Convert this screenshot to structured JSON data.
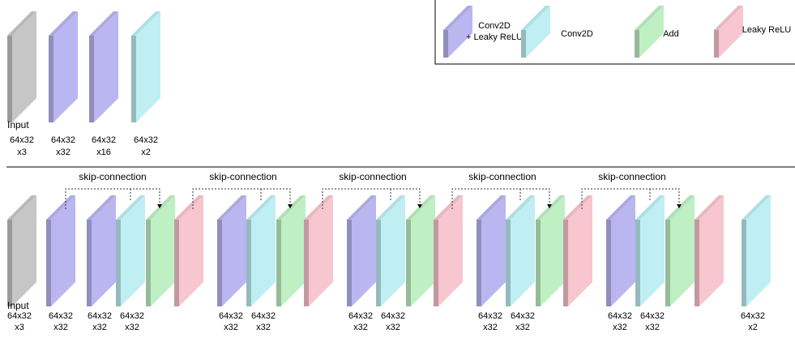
{
  "colors": {
    "conv_leaky": "#b9b6f0",
    "conv": "#bfeff3",
    "add": "#bff0c4",
    "leaky": "#f8c6cf",
    "input": "#c6c6c6"
  },
  "legend": [
    {
      "type": "conv_leaky",
      "line1": "Conv2D",
      "line2": "+ Leaky ReLU"
    },
    {
      "type": "conv",
      "line1": "Conv2D",
      "line2": ""
    },
    {
      "type": "add",
      "line1": "Add",
      "line2": ""
    },
    {
      "type": "leaky",
      "line1": "Leaky ReLU",
      "line2": ""
    }
  ],
  "top_network": {
    "layers": [
      {
        "type": "input",
        "label_top": "Input",
        "line1": "64x32",
        "line2": "x3"
      },
      {
        "type": "conv_leaky",
        "label_top": "",
        "line1": "64x32",
        "line2": "x32"
      },
      {
        "type": "conv_leaky",
        "label_top": "",
        "line1": "64x32",
        "line2": "x16"
      },
      {
        "type": "conv",
        "label_top": "",
        "line1": "64x32",
        "line2": "x2"
      }
    ]
  },
  "bottom_network": {
    "skip_label": "skip-connection",
    "input": {
      "label_top": "Input",
      "line1": "64x32",
      "line2": "x3"
    },
    "block_labels": [
      {
        "line1": "64x32",
        "line2": "x32"
      },
      {
        "line1": "64x32",
        "line2": "x32"
      }
    ],
    "first_label": {
      "line1": "64x32",
      "line2": "x32"
    },
    "final": {
      "type": "conv",
      "line1": "64x32",
      "line2": "x2"
    }
  }
}
